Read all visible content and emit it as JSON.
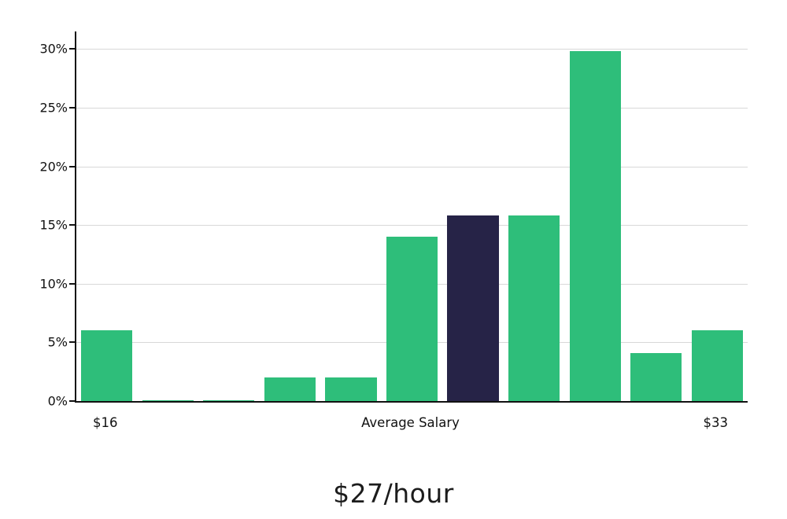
{
  "chart_data": {
    "type": "bar",
    "title": "$27/hour",
    "xlabel": "",
    "ylabel": "",
    "categories": [
      "$16",
      "",
      "",
      "",
      "",
      "Average Salary",
      "",
      "",
      "",
      "",
      "$33"
    ],
    "values": [
      6,
      0.1,
      0.1,
      2,
      2,
      14,
      15.8,
      15.8,
      29.8,
      4.1,
      6
    ],
    "highlight_index": 6,
    "bar_color": "#2ebe7a",
    "highlight_color": "#262347",
    "y_ticks": [
      0,
      5,
      10,
      15,
      20,
      25,
      30
    ],
    "y_tick_suffix": "%",
    "ylim": [
      0,
      31.5
    ],
    "grid": "horizontal",
    "legend": "none"
  }
}
